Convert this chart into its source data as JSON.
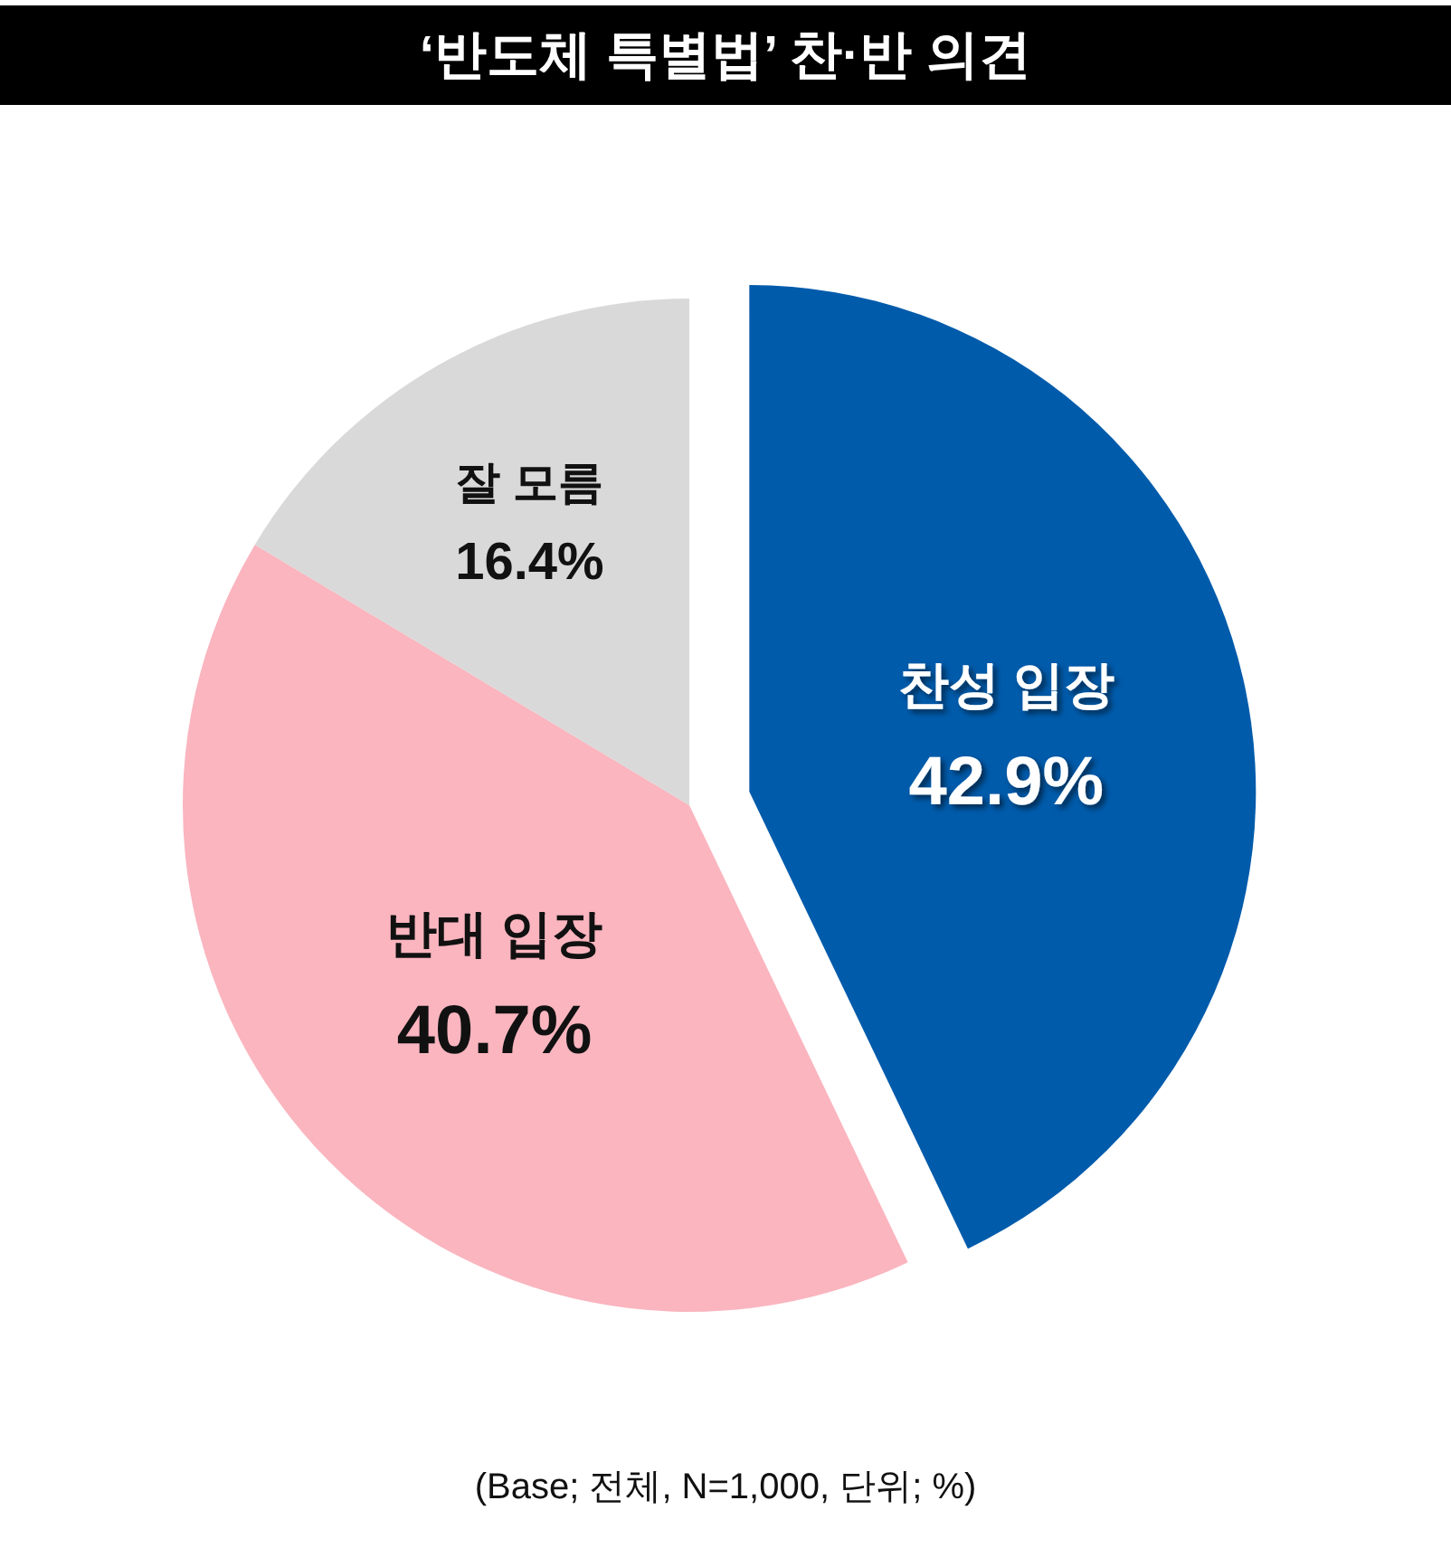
{
  "chart_data": {
    "type": "pie",
    "title": "‘반도체 특별법’ 찬·반 의견",
    "categories": [
      "찬성 입장",
      "반대 입장",
      "잘 모름"
    ],
    "values": [
      42.9,
      40.7,
      16.4
    ],
    "colors": [
      "#005bab",
      "#fab5bf",
      "#d9d9d9"
    ],
    "value_labels": [
      "42.9%",
      "40.7%",
      "16.4%"
    ],
    "annotations": [
      "(Base; 전체, N=1,000, 단위; %)"
    ]
  }
}
